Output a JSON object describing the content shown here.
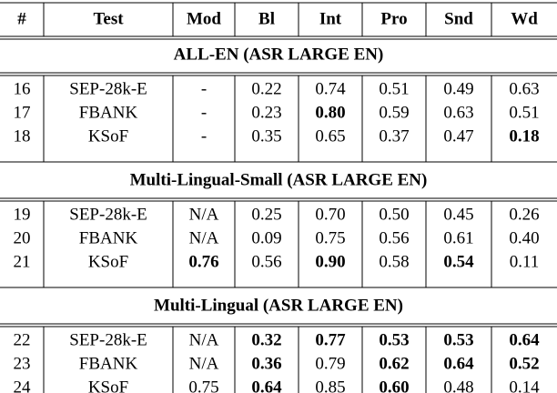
{
  "table": {
    "header": [
      "#",
      "Test",
      "Mod",
      "Bl",
      "Int",
      "Pro",
      "Snd",
      "Wd"
    ],
    "sections": [
      {
        "title": "ALL-EN (ASR LARGE EN)",
        "rows": [
          {
            "cells": [
              "16",
              "SEP-28k-E",
              "-",
              "0.22",
              "0.74",
              "0.51",
              "0.49",
              "0.63"
            ],
            "bold": []
          },
          {
            "cells": [
              "17",
              "FBANK",
              "-",
              "0.23",
              "0.80",
              "0.59",
              "0.63",
              "0.51"
            ],
            "bold": [
              4
            ]
          },
          {
            "cells": [
              "18",
              "KSoF",
              "-",
              "0.35",
              "0.65",
              "0.37",
              "0.47",
              "0.18"
            ],
            "bold": [
              7
            ]
          }
        ]
      },
      {
        "title": "Multi-Lingual-Small (ASR LARGE EN)",
        "rows": [
          {
            "cells": [
              "19",
              "SEP-28k-E",
              "N/A",
              "0.25",
              "0.70",
              "0.50",
              "0.45",
              "0.26"
            ],
            "bold": []
          },
          {
            "cells": [
              "20",
              "FBANK",
              "N/A",
              "0.09",
              "0.75",
              "0.56",
              "0.61",
              "0.40"
            ],
            "bold": []
          },
          {
            "cells": [
              "21",
              "KSoF",
              "0.76",
              "0.56",
              "0.90",
              "0.58",
              "0.54",
              "0.11"
            ],
            "bold": [
              2,
              4,
              6
            ]
          }
        ]
      },
      {
        "title": "Multi-Lingual (ASR LARGE EN)",
        "rows": [
          {
            "cells": [
              "22",
              "SEP-28k-E",
              "N/A",
              "0.32",
              "0.77",
              "0.53",
              "0.53",
              "0.64"
            ],
            "bold": [
              3,
              4,
              5,
              6,
              7
            ]
          },
          {
            "cells": [
              "23",
              "FBANK",
              "N/A",
              "0.36",
              "0.79",
              "0.62",
              "0.64",
              "0.52"
            ],
            "bold": [
              3,
              5,
              6,
              7
            ]
          },
          {
            "cells": [
              "24",
              "KSoF",
              "0.75",
              "0.64",
              "0.85",
              "0.60",
              "0.48",
              "0.14"
            ],
            "bold": [
              3,
              5
            ]
          }
        ]
      }
    ]
  }
}
